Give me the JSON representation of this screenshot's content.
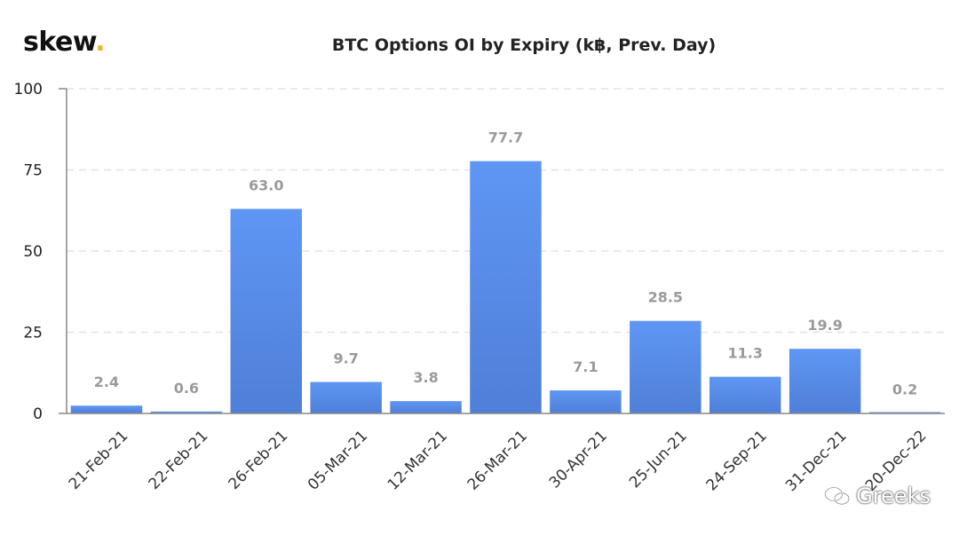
{
  "logo": {
    "text": "skew",
    "dot": "."
  },
  "watermark": {
    "text": "Greeks",
    "icon": "wechat-icon"
  },
  "colors": {
    "bar_top": "#5f96f4",
    "bar_bottom": "#4f7fd8",
    "grid": "#e3e3e3",
    "axis": "#888888",
    "label": "#9a9a9a",
    "accent": "#f2b51c"
  },
  "chart_data": {
    "type": "bar",
    "title": "BTC Options OI by Expiry (k฿, Prev. Day)",
    "xlabel": "",
    "ylabel": "",
    "categories": [
      "21-Feb-21",
      "22-Feb-21",
      "26-Feb-21",
      "05-Mar-21",
      "12-Mar-21",
      "26-Mar-21",
      "30-Apr-21",
      "25-Jun-21",
      "24-Sep-21",
      "31-Dec-21",
      "20-Dec-22"
    ],
    "values": [
      2.4,
      0.6,
      63.0,
      9.7,
      3.8,
      77.7,
      7.1,
      28.5,
      11.3,
      19.9,
      0.2
    ],
    "value_labels": [
      "2.4",
      "0.6",
      "63.0",
      "9.7",
      "3.8",
      "77.7",
      "7.1",
      "28.5",
      "11.3",
      "19.9",
      "0.2"
    ],
    "ylim": [
      0,
      100
    ],
    "yticks": [
      "0",
      "25",
      "50",
      "75",
      "100"
    ],
    "grid": "horizontal dashed",
    "legend": "none"
  }
}
